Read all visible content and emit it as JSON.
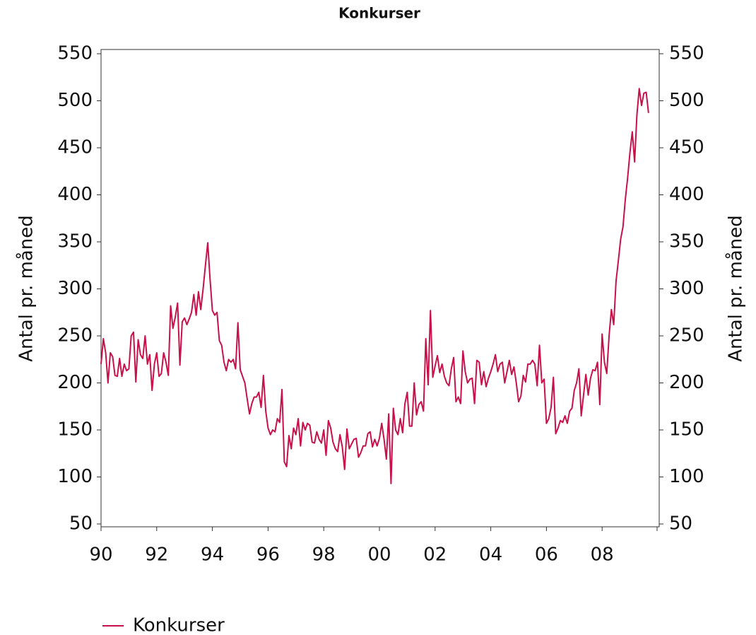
{
  "chart_data": {
    "type": "line",
    "title": "Konkurser",
    "ylabel": "Antal pr. måned",
    "y2label": "Antal pr. måned",
    "categories": [
      "90",
      null,
      null,
      null,
      null,
      null,
      null,
      null,
      null,
      null,
      null,
      null,
      null,
      null,
      null,
      null,
      null,
      null,
      null,
      null,
      null,
      null,
      null,
      null,
      "92",
      null,
      null,
      null,
      null,
      null,
      null,
      null,
      null,
      null,
      null,
      null,
      null,
      null,
      null,
      null,
      null,
      null,
      null,
      null,
      null,
      null,
      null,
      null,
      "94",
      null,
      null,
      null,
      null,
      null,
      null,
      null,
      null,
      null,
      null,
      null,
      null,
      null,
      null,
      null,
      null,
      null,
      null,
      null,
      null,
      null,
      null,
      null,
      "96",
      null,
      null,
      null,
      null,
      null,
      null,
      null,
      null,
      null,
      null,
      null,
      null,
      null,
      null,
      null,
      null,
      null,
      null,
      null,
      null,
      null,
      null,
      null,
      "98",
      null,
      null,
      null,
      null,
      null,
      null,
      null,
      null,
      null,
      null,
      null,
      null,
      null,
      null,
      null,
      null,
      null,
      null,
      null,
      null,
      null,
      null,
      null,
      "00",
      null,
      null,
      null,
      null,
      null,
      null,
      null,
      null,
      null,
      null,
      null,
      null,
      null,
      null,
      null,
      null,
      null,
      null,
      null,
      null,
      null,
      null,
      null,
      "02",
      null,
      null,
      null,
      null,
      null,
      null,
      null,
      null,
      null,
      null,
      null,
      null,
      null,
      null,
      null,
      null,
      null,
      null,
      null,
      null,
      null,
      null,
      null,
      "04",
      null,
      null,
      null,
      null,
      null,
      null,
      null,
      null,
      null,
      null,
      null,
      null,
      null,
      null,
      null,
      null,
      null,
      null,
      null,
      null,
      null,
      null,
      null,
      "06",
      null,
      null,
      null,
      null,
      null,
      null,
      null,
      null,
      null,
      null,
      null,
      null,
      null,
      null,
      null,
      null,
      null,
      null,
      null,
      null,
      null,
      null,
      null,
      "08",
      null,
      null,
      null,
      null,
      null,
      null,
      null,
      null,
      null,
      null,
      null,
      null,
      null,
      null,
      null,
      null,
      null,
      null,
      null,
      null
    ],
    "series": [
      {
        "name": "Konkurser",
        "color": "#c8104a",
        "values": [
          220,
          247,
          232,
          200,
          232,
          228,
          208,
          207,
          226,
          207,
          220,
          213,
          215,
          250,
          254,
          201,
          246,
          230,
          226,
          250,
          220,
          230,
          192,
          220,
          232,
          207,
          210,
          232,
          222,
          208,
          282,
          258,
          270,
          285,
          219,
          265,
          269,
          262,
          268,
          275,
          294,
          272,
          297,
          278,
          300,
          325,
          349,
          310,
          277,
          272,
          275,
          245,
          240,
          222,
          213,
          225,
          222,
          225,
          215,
          264,
          214,
          207,
          200,
          183,
          167,
          178,
          185,
          185,
          190,
          174,
          208,
          170,
          152,
          145,
          150,
          148,
          162,
          158,
          193,
          116,
          111,
          144,
          130,
          152,
          145,
          162,
          133,
          158,
          150,
          157,
          155,
          137,
          136,
          148,
          140,
          136,
          150,
          123,
          160,
          152,
          137,
          130,
          127,
          145,
          132,
          108,
          151,
          130,
          135,
          140,
          141,
          121,
          126,
          133,
          133,
          146,
          148,
          132,
          140,
          133,
          141,
          157,
          140,
          119,
          167,
          93,
          173,
          150,
          145,
          162,
          147,
          178,
          190,
          154,
          154,
          200,
          166,
          177,
          180,
          170,
          247,
          198,
          277,
          206,
          218,
          229,
          211,
          220,
          207,
          200,
          197,
          215,
          227,
          180,
          185,
          178,
          234,
          212,
          200,
          204,
          205,
          178,
          224,
          222,
          198,
          212,
          196,
          205,
          212,
          220,
          230,
          212,
          220,
          222,
          200,
          212,
          224,
          209,
          217,
          200,
          180,
          186,
          208,
          201,
          220,
          220,
          224,
          220,
          197,
          240,
          200,
          204,
          157,
          162,
          174,
          206,
          146,
          152,
          160,
          158,
          165,
          157,
          170,
          173,
          192,
          200,
          215,
          165,
          187,
          209,
          187,
          205,
          214,
          213,
          222,
          177,
          252,
          222,
          210,
          250,
          278,
          262,
          308,
          330,
          353,
          366,
          395,
          418,
          445,
          467,
          435,
          485,
          513,
          495,
          508,
          509,
          487
        ]
      }
    ],
    "ylim": [
      50,
      550
    ],
    "yticks": [
      50,
      100,
      150,
      200,
      250,
      300,
      350,
      400,
      450,
      500,
      550
    ],
    "y2lim": [
      50,
      550
    ],
    "y2ticks": [
      50,
      100,
      150,
      200,
      250,
      300,
      350,
      400,
      450,
      500,
      550
    ]
  }
}
